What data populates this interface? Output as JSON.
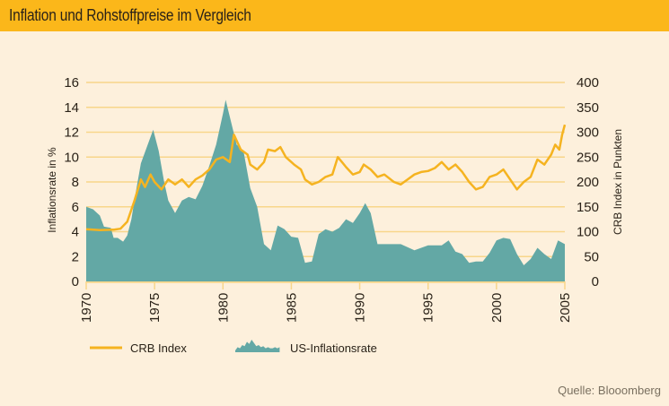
{
  "title": "Inflation und Rohstoffpreise im Vergleich",
  "source": "Quelle: Blooomberg",
  "colors": {
    "header": "#fbb71a",
    "background": "#fdf0dc",
    "crb_line": "#f5b320",
    "inflation_area": "#63a8a5",
    "grid": "#f8d68a"
  },
  "chart_data": {
    "type": "area",
    "title": "Inflation und Rohstoffpreise im Vergleich",
    "xlabel": "",
    "ylabel": "Inflationsrate in %",
    "y2label": "CRB Index in Punkten",
    "xlim": [
      1970,
      2005
    ],
    "ylim": [
      0,
      16
    ],
    "y2lim": [
      0,
      400
    ],
    "grid": true,
    "legend_position": "bottom-left",
    "x_ticks": [
      "1970",
      "1975",
      "1980",
      "1985",
      "1990",
      "1995",
      "2000",
      "2005"
    ],
    "y_ticks": [
      "0",
      "2",
      "4",
      "6",
      "8",
      "10",
      "12",
      "14",
      "16"
    ],
    "y2_ticks": [
      "0",
      "50",
      "100",
      "150",
      "200",
      "250",
      "300",
      "350",
      "400"
    ],
    "series": [
      {
        "name": "US-Inflationsrate",
        "type": "area",
        "axis": "left",
        "x": [
          1970.0,
          1970.5,
          1971.0,
          1971.3,
          1971.8,
          1972.0,
          1972.3,
          1972.7,
          1973.0,
          1973.3,
          1973.6,
          1974.0,
          1974.5,
          1974.9,
          1975.3,
          1975.7,
          1976.0,
          1976.5,
          1977.0,
          1977.5,
          1978.0,
          1978.5,
          1979.0,
          1979.5,
          1980.0,
          1980.2,
          1980.6,
          1981.0,
          1981.5,
          1982.0,
          1982.5,
          1983.0,
          1983.5,
          1984.0,
          1984.5,
          1985.0,
          1985.5,
          1986.0,
          1986.5,
          1987.0,
          1987.5,
          1988.0,
          1988.5,
          1989.0,
          1989.5,
          1990.0,
          1990.4,
          1990.8,
          1991.3,
          1992.0,
          1993.0,
          1994.0,
          1995.0,
          1996.0,
          1996.5,
          1997.0,
          1997.5,
          1998.0,
          1998.5,
          1999.0,
          1999.5,
          2000.0,
          2000.5,
          2001.0,
          2001.5,
          2002.0,
          2002.5,
          2003.0,
          2003.5,
          2004.0,
          2004.5,
          2005.0
        ],
        "values": [
          6.0,
          5.8,
          5.3,
          4.4,
          4.3,
          3.5,
          3.5,
          3.2,
          3.7,
          5.0,
          7.0,
          9.5,
          11.0,
          12.2,
          10.5,
          8.0,
          6.5,
          5.5,
          6.5,
          6.8,
          6.6,
          7.7,
          9.3,
          11.0,
          13.5,
          14.6,
          12.8,
          11.0,
          10.5,
          7.5,
          6.0,
          3.0,
          2.5,
          4.5,
          4.2,
          3.6,
          3.5,
          1.5,
          1.6,
          3.8,
          4.2,
          4.0,
          4.3,
          5.0,
          4.7,
          5.5,
          6.3,
          5.5,
          3.0,
          3.0,
          3.0,
          2.5,
          2.9,
          2.9,
          3.3,
          2.4,
          2.2,
          1.5,
          1.6,
          1.6,
          2.3,
          3.3,
          3.5,
          3.4,
          2.2,
          1.3,
          1.8,
          2.7,
          2.2,
          1.8,
          3.3,
          3.0
        ]
      },
      {
        "name": "CRB Index",
        "type": "line",
        "axis": "right",
        "x": [
          1970.0,
          1971.0,
          1972.0,
          1972.5,
          1973.0,
          1973.5,
          1974.0,
          1974.3,
          1974.7,
          1975.0,
          1975.5,
          1976.0,
          1976.5,
          1977.0,
          1977.5,
          1978.0,
          1978.5,
          1979.0,
          1979.5,
          1980.0,
          1980.5,
          1980.8,
          1981.3,
          1981.8,
          1982.0,
          1982.5,
          1983.0,
          1983.3,
          1983.8,
          1984.2,
          1984.6,
          1985.2,
          1985.7,
          1986.0,
          1986.5,
          1987.0,
          1987.5,
          1988.0,
          1988.4,
          1988.7,
          1989.0,
          1989.5,
          1990.0,
          1990.3,
          1990.8,
          1991.3,
          1991.8,
          1992.5,
          1993.0,
          1993.5,
          1994.0,
          1994.5,
          1995.0,
          1995.5,
          1996.0,
          1996.5,
          1997.0,
          1997.5,
          1998.0,
          1998.5,
          1999.0,
          1999.5,
          2000.0,
          2000.5,
          2001.0,
          2001.5,
          2002.0,
          2002.5,
          2003.0,
          2003.5,
          2004.0,
          2004.3,
          2004.6,
          2004.8,
          2005.0
        ],
        "values": [
          105,
          103,
          104,
          106,
          120,
          160,
          205,
          190,
          215,
          200,
          185,
          205,
          195,
          205,
          190,
          205,
          213,
          225,
          245,
          250,
          240,
          295,
          265,
          255,
          235,
          225,
          240,
          265,
          262,
          270,
          250,
          235,
          225,
          205,
          195,
          200,
          210,
          215,
          250,
          240,
          230,
          215,
          220,
          235,
          225,
          210,
          215,
          200,
          195,
          205,
          215,
          220,
          222,
          228,
          240,
          225,
          235,
          220,
          200,
          185,
          190,
          210,
          215,
          225,
          205,
          185,
          200,
          210,
          245,
          235,
          255,
          275,
          265,
          295,
          315
        ]
      }
    ]
  },
  "legend": {
    "crb": "CRB Index",
    "inflation": "US-Inflationsrate"
  }
}
